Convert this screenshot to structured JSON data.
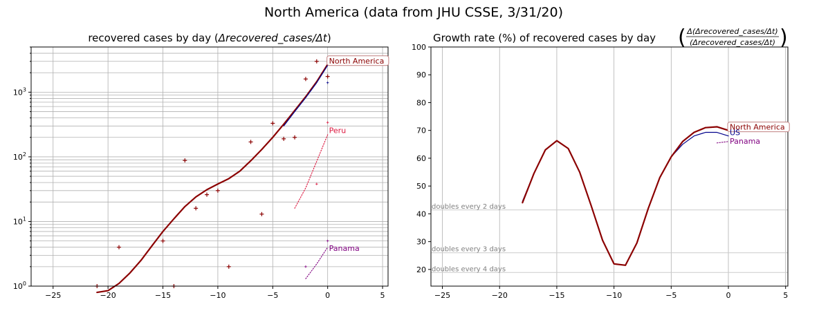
{
  "figure": {
    "suptitle": "North America (data from JHU CSSE, 3/31/20)"
  },
  "colors": {
    "north_america": "#8b0000",
    "us": "#00008b",
    "peru": "#dc143c",
    "panama": "#800080",
    "annot_box_edge": "#c08080"
  },
  "chart_data": [
    {
      "type": "line",
      "scale_y": "log",
      "title_prefix": "recovered cases by day (",
      "title_math": "Δrecovered_cases/Δt",
      "title_suffix": ")",
      "xlim": [
        -27,
        5.5
      ],
      "ylim": [
        1,
        5000
      ],
      "xticks": [
        -25,
        -20,
        -15,
        -10,
        -5,
        0,
        5
      ],
      "yticks": [
        {
          "value": 1,
          "base": "10",
          "exp": "0"
        },
        {
          "value": 10,
          "base": "10",
          "exp": "1"
        },
        {
          "value": 100,
          "base": "10",
          "exp": "2"
        },
        {
          "value": 1000,
          "base": "10",
          "exp": "3"
        }
      ],
      "grid": true,
      "series": [
        {
          "name": "North America (trend)",
          "style": "solid",
          "x": [
            -21,
            -20,
            -19,
            -18,
            -17,
            -16,
            -15,
            -14,
            -13,
            -12,
            -11,
            -10,
            -9,
            -8,
            -7,
            -6,
            -5,
            -4,
            -3,
            -2,
            -1,
            0
          ],
          "y": [
            0.8,
            0.85,
            1.1,
            1.6,
            2.5,
            4.2,
            7,
            11,
            17,
            24,
            31,
            38,
            46,
            60,
            87,
            130,
            200,
            320,
            520,
            850,
            1450,
            2700
          ]
        },
        {
          "name": "US (trend)",
          "style": "solid-thin",
          "x": [
            -4,
            -3,
            -2,
            -1,
            0
          ],
          "y": [
            300,
            500,
            820,
            1400,
            2600
          ]
        },
        {
          "name": "North America (daily)",
          "style": "plus",
          "x": [
            -21,
            -19,
            -15,
            -14,
            -13,
            -12,
            -11,
            -10,
            -9,
            -7,
            -6,
            -5,
            -4,
            -3,
            -2,
            -1,
            0
          ],
          "y": [
            1,
            4,
            5,
            1,
            88,
            16,
            26,
            30,
            2,
            170,
            13,
            330,
            190,
            200,
            1600,
            3000,
            1750
          ]
        },
        {
          "name": "US (daily)",
          "style": "plus-small",
          "x": [
            0
          ],
          "y": [
            1400
          ]
        },
        {
          "name": "Peru (trend)",
          "style": "dotted",
          "x": [
            -3,
            -2,
            -1,
            0
          ],
          "y": [
            16,
            33,
            85,
            220
          ]
        },
        {
          "name": "Peru (daily)",
          "style": "plus-small",
          "x": [
            -1,
            0
          ],
          "y": [
            38,
            340
          ]
        },
        {
          "name": "Panama (trend)",
          "style": "dotted",
          "x": [
            -2,
            -1,
            0
          ],
          "y": [
            1.3,
            2.2,
            4
          ]
        },
        {
          "name": "Panama (daily)",
          "style": "plus-small",
          "x": [
            -2,
            0
          ],
          "y": [
            2,
            5
          ]
        }
      ],
      "annotations": [
        {
          "text": "North America",
          "x": 0,
          "y": 3000,
          "boxed": true,
          "color_key": "north_america"
        },
        {
          "text": "Peru",
          "x": 0,
          "y": 250,
          "boxed": false,
          "color_key": "peru"
        },
        {
          "text": "Panama",
          "x": 0,
          "y": 3.8,
          "boxed": false,
          "color_key": "panama"
        }
      ]
    },
    {
      "type": "line",
      "scale_y": "linear",
      "title_prefix": "Growth rate (%) of recovered cases by day ",
      "title_num": "Δ(Δrecovered_cases/Δt)",
      "title_den": "(Δrecovered_cases/Δt)",
      "xlim": [
        -26,
        5.2
      ],
      "ylim": [
        14,
        100
      ],
      "xticks": [
        -25,
        -20,
        -15,
        -10,
        -5,
        0,
        5
      ],
      "yticks": [
        20,
        30,
        40,
        50,
        60,
        70,
        80,
        90,
        100
      ],
      "grid": "x-only",
      "reference_lines": [
        {
          "label": "doubles every 2 days",
          "value": 41.4
        },
        {
          "label": "doubles every 3 days",
          "value": 26
        },
        {
          "label": "doubles every 4 days",
          "value": 18.9
        }
      ],
      "series": [
        {
          "name": "US",
          "style": "solid-thin",
          "x": [
            -18,
            -17,
            -16,
            -15,
            -14,
            -13,
            -12,
            -11,
            -10,
            -9,
            -8,
            -7,
            -6,
            -5,
            -4,
            -3,
            -2,
            -1,
            0
          ],
          "y": [
            44.5,
            54.5,
            63,
            66.3,
            63.5,
            55,
            43,
            30.5,
            22,
            21.5,
            29.5,
            42,
            53,
            60.5,
            65,
            68,
            69.3,
            69.3,
            68
          ]
        },
        {
          "name": "North America",
          "style": "solid",
          "x": [
            -18,
            -17,
            -16,
            -15,
            -14,
            -13,
            -12,
            -11,
            -10,
            -9,
            -8,
            -7,
            -6,
            -5,
            -4,
            -3,
            -2,
            -1,
            0
          ],
          "y": [
            44,
            54.5,
            63,
            66.3,
            63.5,
            55,
            43,
            30.5,
            22,
            21.5,
            29.5,
            42,
            53,
            60.5,
            66,
            69.3,
            71,
            71.3,
            70
          ]
        },
        {
          "name": "Panama",
          "style": "dotted",
          "x": [
            -1,
            0
          ],
          "y": [
            65.5,
            66
          ]
        }
      ],
      "annotations": [
        {
          "text": "North America",
          "x": 0,
          "y": 71,
          "boxed": true,
          "color_key": "north_america"
        },
        {
          "text": "US",
          "x": 0,
          "y": 69,
          "boxed": false,
          "color_key": "us"
        },
        {
          "text": "Panama",
          "x": 0,
          "y": 66,
          "boxed": false,
          "color_key": "panama"
        }
      ]
    }
  ]
}
